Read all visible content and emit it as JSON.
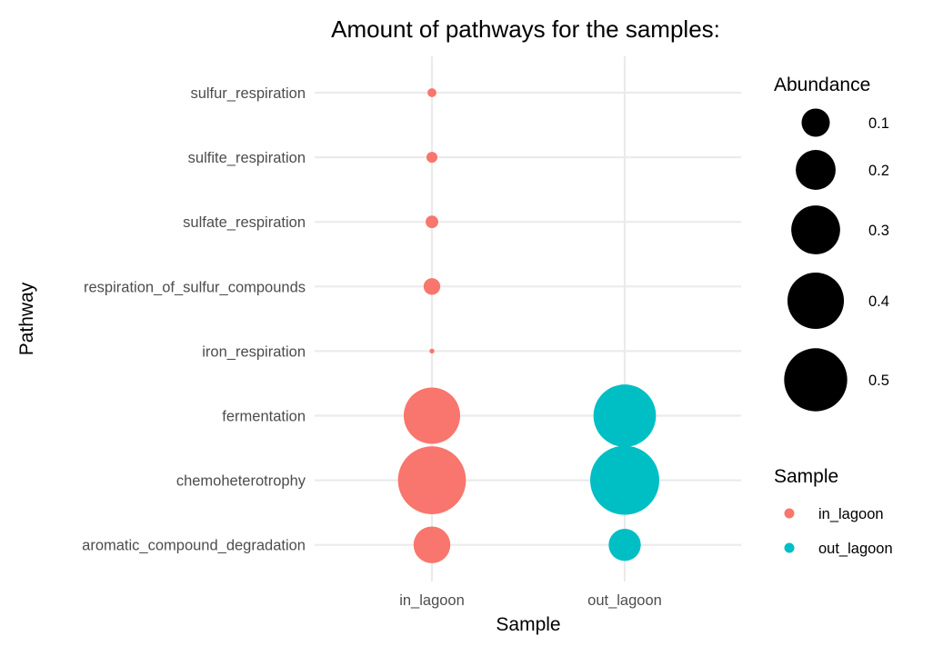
{
  "chart_data": {
    "type": "scatter",
    "title": "Amount of pathways for the samples:",
    "xlabel": "Sample",
    "ylabel": "Pathway",
    "x_categories": [
      "in_lagoon",
      "out_lagoon"
    ],
    "y_categories": [
      "sulfur_respiration",
      "sulfite_respiration",
      "sulfate_respiration",
      "respiration_of_sulfur_compounds",
      "iron_respiration",
      "fermentation",
      "chemoheterotrophy",
      "aromatic_compound_degradation"
    ],
    "points": [
      {
        "sample": "in_lagoon",
        "pathway": "sulfur_respiration",
        "abundance": 0.01
      },
      {
        "sample": "in_lagoon",
        "pathway": "sulfite_respiration",
        "abundance": 0.015
      },
      {
        "sample": "in_lagoon",
        "pathway": "sulfate_respiration",
        "abundance": 0.02
      },
      {
        "sample": "in_lagoon",
        "pathway": "respiration_of_sulfur_compounds",
        "abundance": 0.035
      },
      {
        "sample": "in_lagoon",
        "pathway": "iron_respiration",
        "abundance": 0.003
      },
      {
        "sample": "in_lagoon",
        "pathway": "fermentation",
        "abundance": 0.4
      },
      {
        "sample": "in_lagoon",
        "pathway": "chemoheterotrophy",
        "abundance": 0.58
      },
      {
        "sample": "in_lagoon",
        "pathway": "aromatic_compound_degradation",
        "abundance": 0.17
      },
      {
        "sample": "out_lagoon",
        "pathway": "fermentation",
        "abundance": 0.49
      },
      {
        "sample": "out_lagoon",
        "pathway": "chemoheterotrophy",
        "abundance": 0.6
      },
      {
        "sample": "out_lagoon",
        "pathway": "aromatic_compound_degradation",
        "abundance": 0.13
      }
    ],
    "size_legend": {
      "title": "Abundance",
      "values": [
        0.1,
        0.2,
        0.3,
        0.4,
        0.5
      ],
      "labels": [
        "0.1",
        "0.2",
        "0.3",
        "0.4",
        "0.5"
      ]
    },
    "color_legend": {
      "title": "Sample",
      "items": [
        {
          "label": "in_lagoon",
          "color": "#F8766D"
        },
        {
          "label": "out_lagoon",
          "color": "#00BFC4"
        }
      ]
    },
    "grid": true,
    "legend_position": "right",
    "colors": {
      "in_lagoon": "#F8766D",
      "out_lagoon": "#00BFC4",
      "grid": "#EBEBEB",
      "size_legend": "#000000"
    }
  }
}
